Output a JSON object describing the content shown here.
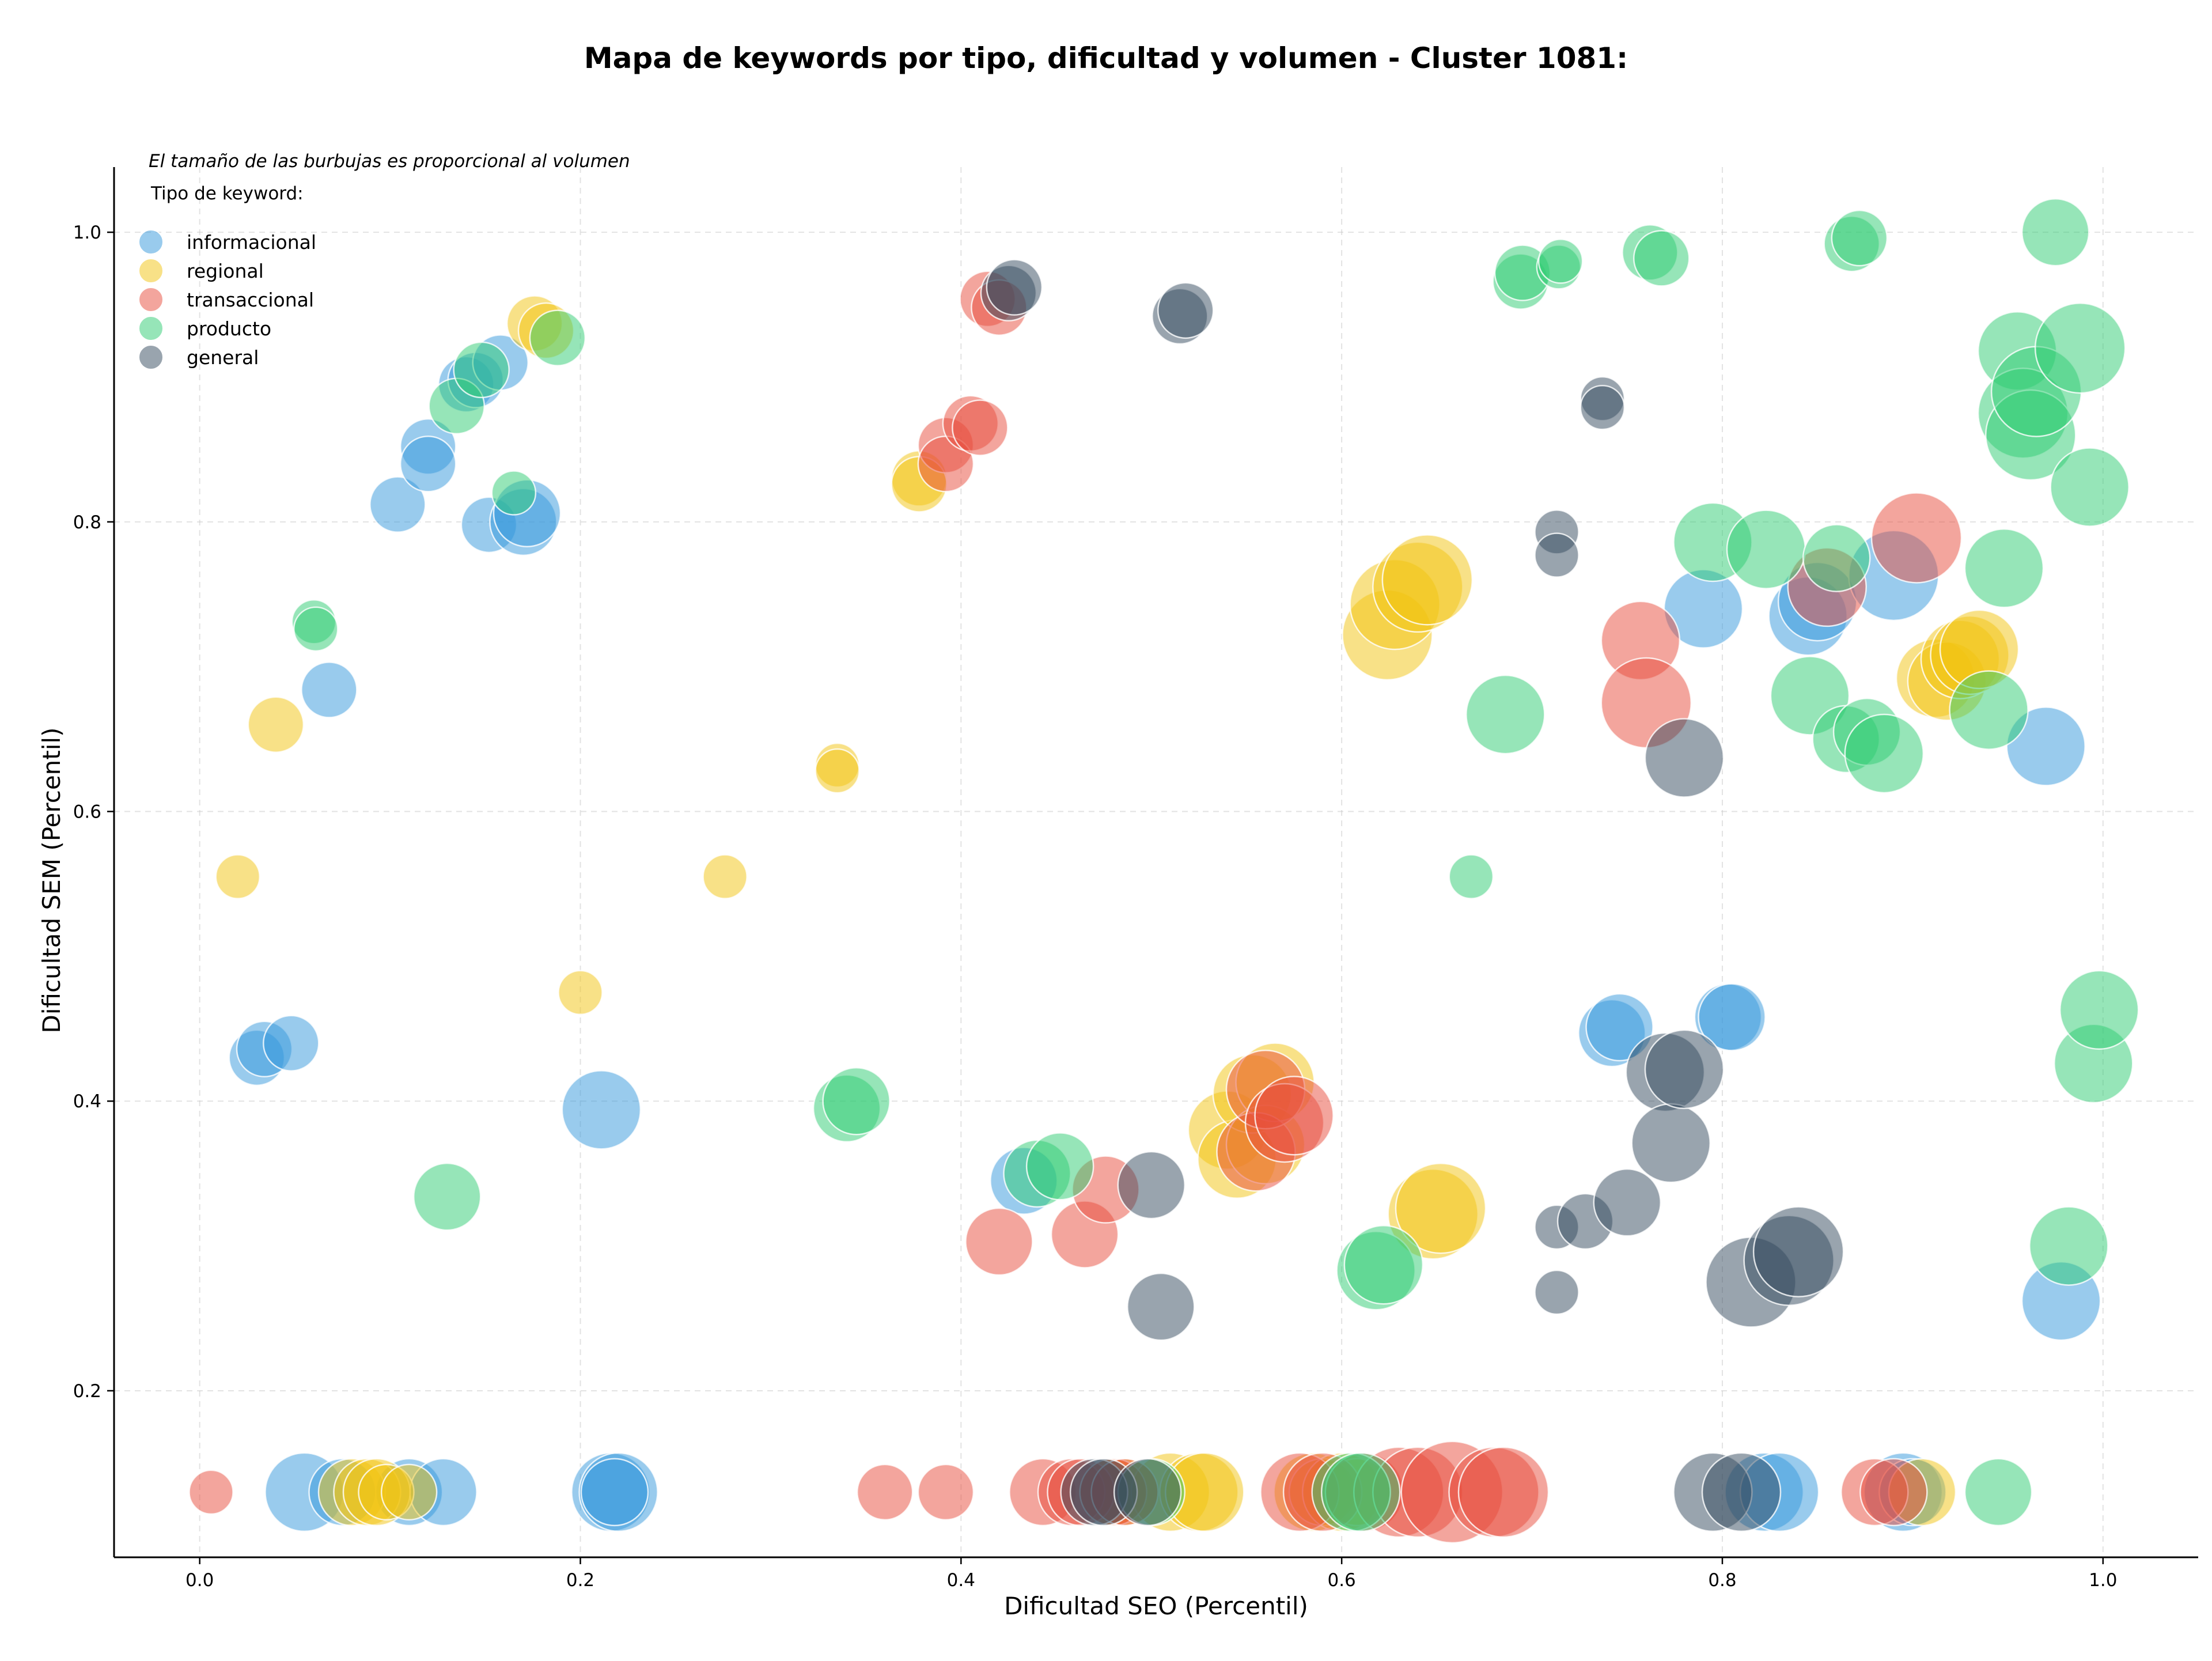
{
  "chart_data": {
    "type": "scatter",
    "title": "Mapa de keywords por tipo, dificultad y volumen - Cluster 1081:",
    "xlabel": "Dificultad SEO (Percentil)",
    "ylabel": "Dificultad SEM (Percentil)",
    "note": "El tamaño de las burbujas es proporcional al volumen",
    "legend_title": "Tipo de keyword:",
    "legend_position": "top-left",
    "grid": true,
    "xlim": [
      -0.045,
      1.05
    ],
    "ylim": [
      0.085,
      1.045
    ],
    "xticks": [
      0.0,
      0.2,
      0.4,
      0.6,
      0.8,
      1.0
    ],
    "xtick_labels": [
      "0.0",
      "0.2",
      "0.4",
      "0.6",
      "0.8",
      "1.0"
    ],
    "yticks": [
      0.2,
      0.4,
      0.6,
      0.8,
      1.0
    ],
    "ytick_labels": [
      "0.2",
      "0.4",
      "0.6",
      "0.8",
      "1.0"
    ],
    "size_encoding": "volumen",
    "series": [
      {
        "name": "informacional",
        "color": "#3498db",
        "points": [
          [
            0.03,
            0.43,
            3
          ],
          [
            0.034,
            0.436,
            3
          ],
          [
            0.048,
            0.44,
            3
          ],
          [
            0.068,
            0.684,
            3
          ],
          [
            0.055,
            0.13,
            5
          ],
          [
            0.075,
            0.13,
            4
          ],
          [
            0.11,
            0.13,
            4
          ],
          [
            0.128,
            0.13,
            4
          ],
          [
            0.104,
            0.812,
            3
          ],
          [
            0.12,
            0.852,
            3
          ],
          [
            0.12,
            0.84,
            3
          ],
          [
            0.14,
            0.895,
            3
          ],
          [
            0.145,
            0.898,
            3
          ],
          [
            0.158,
            0.91,
            3
          ],
          [
            0.152,
            0.798,
            3
          ],
          [
            0.17,
            0.8,
            4
          ],
          [
            0.172,
            0.806,
            4
          ],
          [
            0.211,
            0.394,
            5
          ],
          [
            0.216,
            0.13,
            5
          ],
          [
            0.22,
            0.13,
            5
          ],
          [
            0.218,
            0.13,
            4
          ],
          [
            0.433,
            0.345,
            4
          ],
          [
            0.742,
            0.447,
            4
          ],
          [
            0.746,
            0.451,
            4
          ],
          [
            0.79,
            0.74,
            5
          ],
          [
            0.803,
            0.458,
            4
          ],
          [
            0.805,
            0.458,
            4
          ],
          [
            0.822,
            0.13,
            5
          ],
          [
            0.83,
            0.13,
            5
          ],
          [
            0.845,
            0.735,
            5
          ],
          [
            0.85,
            0.745,
            5
          ],
          [
            0.89,
            0.763,
            6
          ],
          [
            0.895,
            0.13,
            5
          ],
          [
            0.9,
            0.13,
            4
          ],
          [
            0.97,
            0.645,
            5
          ],
          [
            0.978,
            0.262,
            5
          ]
        ]
      },
      {
        "name": "regional",
        "color": "#f1c40f",
        "points": [
          [
            0.02,
            0.555,
            2
          ],
          [
            0.04,
            0.66,
            3
          ],
          [
            0.08,
            0.13,
            4
          ],
          [
            0.088,
            0.13,
            4
          ],
          [
            0.093,
            0.13,
            4
          ],
          [
            0.098,
            0.13,
            3
          ],
          [
            0.11,
            0.13,
            3
          ],
          [
            0.176,
            0.937,
            3
          ],
          [
            0.182,
            0.932,
            3
          ],
          [
            0.2,
            0.475,
            2
          ],
          [
            0.276,
            0.555,
            2
          ],
          [
            0.335,
            0.632,
            2
          ],
          [
            0.335,
            0.628,
            2
          ],
          [
            0.378,
            0.83,
            3
          ],
          [
            0.378,
            0.826,
            3
          ],
          [
            0.48,
            0.13,
            4
          ],
          [
            0.486,
            0.13,
            4
          ],
          [
            0.51,
            0.13,
            5
          ],
          [
            0.525,
            0.13,
            5
          ],
          [
            0.528,
            0.13,
            5
          ],
          [
            0.54,
            0.38,
            5
          ],
          [
            0.545,
            0.36,
            5
          ],
          [
            0.553,
            0.405,
            5
          ],
          [
            0.56,
            0.37,
            5
          ],
          [
            0.565,
            0.413,
            5
          ],
          [
            0.585,
            0.13,
            5
          ],
          [
            0.59,
            0.13,
            4
          ],
          [
            0.6,
            0.13,
            5
          ],
          [
            0.608,
            0.13,
            4
          ],
          [
            0.624,
            0.722,
            6
          ],
          [
            0.628,
            0.743,
            6
          ],
          [
            0.64,
            0.755,
            6
          ],
          [
            0.645,
            0.76,
            6
          ],
          [
            0.648,
            0.322,
            6
          ],
          [
            0.652,
            0.326,
            6
          ],
          [
            0.905,
            0.13,
            4
          ],
          [
            0.912,
            0.692,
            5
          ],
          [
            0.918,
            0.69,
            5
          ],
          [
            0.925,
            0.705,
            5
          ],
          [
            0.93,
            0.708,
            5
          ],
          [
            0.935,
            0.712,
            5
          ]
        ]
      },
      {
        "name": "transaccional",
        "color": "#e74c3c",
        "points": [
          [
            0.006,
            0.13,
            2
          ],
          [
            0.36,
            0.13,
            3
          ],
          [
            0.392,
            0.13,
            3
          ],
          [
            0.392,
            0.853,
            3
          ],
          [
            0.392,
            0.84,
            3
          ],
          [
            0.405,
            0.868,
            3
          ],
          [
            0.41,
            0.865,
            3
          ],
          [
            0.414,
            0.954,
            3
          ],
          [
            0.42,
            0.948,
            3
          ],
          [
            0.42,
            0.303,
            4
          ],
          [
            0.443,
            0.13,
            4
          ],
          [
            0.458,
            0.13,
            4
          ],
          [
            0.463,
            0.13,
            4
          ],
          [
            0.465,
            0.308,
            4
          ],
          [
            0.476,
            0.339,
            4
          ],
          [
            0.48,
            0.13,
            4
          ],
          [
            0.486,
            0.13,
            4
          ],
          [
            0.555,
            0.365,
            5
          ],
          [
            0.56,
            0.408,
            5
          ],
          [
            0.57,
            0.385,
            5
          ],
          [
            0.575,
            0.39,
            5
          ],
          [
            0.578,
            0.13,
            5
          ],
          [
            0.59,
            0.13,
            5
          ],
          [
            0.612,
            0.13,
            5
          ],
          [
            0.63,
            0.13,
            6
          ],
          [
            0.64,
            0.13,
            6
          ],
          [
            0.658,
            0.13,
            7
          ],
          [
            0.68,
            0.13,
            6
          ],
          [
            0.685,
            0.13,
            6
          ],
          [
            0.757,
            0.718,
            5
          ],
          [
            0.76,
            0.675,
            6
          ],
          [
            0.855,
            0.755,
            5
          ],
          [
            0.88,
            0.13,
            4
          ],
          [
            0.89,
            0.13,
            4
          ],
          [
            0.902,
            0.789,
            6
          ]
        ]
      },
      {
        "name": "producto",
        "color": "#2ecc71",
        "points": [
          [
            0.06,
            0.731,
            2
          ],
          [
            0.061,
            0.726,
            2
          ],
          [
            0.13,
            0.334,
            4
          ],
          [
            0.135,
            0.88,
            3
          ],
          [
            0.148,
            0.905,
            3
          ],
          [
            0.165,
            0.82,
            2
          ],
          [
            0.188,
            0.927,
            3
          ],
          [
            0.34,
            0.395,
            4
          ],
          [
            0.345,
            0.4,
            4
          ],
          [
            0.44,
            0.35,
            4
          ],
          [
            0.452,
            0.355,
            4
          ],
          [
            0.5,
            0.13,
            4
          ],
          [
            0.605,
            0.13,
            5
          ],
          [
            0.61,
            0.13,
            5
          ],
          [
            0.618,
            0.283,
            5
          ],
          [
            0.622,
            0.287,
            5
          ],
          [
            0.668,
            0.555,
            2
          ],
          [
            0.686,
            0.667,
            5
          ],
          [
            0.694,
            0.966,
            3
          ],
          [
            0.695,
            0.972,
            3
          ],
          [
            0.714,
            0.976,
            2
          ],
          [
            0.715,
            0.98,
            2
          ],
          [
            0.762,
            0.986,
            3
          ],
          [
            0.768,
            0.982,
            3
          ],
          [
            0.795,
            0.786,
            5
          ],
          [
            0.823,
            0.781,
            5
          ],
          [
            0.846,
            0.68,
            5
          ],
          [
            0.86,
            0.775,
            4
          ],
          [
            0.865,
            0.65,
            4
          ],
          [
            0.868,
            0.992,
            3
          ],
          [
            0.872,
            0.996,
            3
          ],
          [
            0.876,
            0.655,
            4
          ],
          [
            0.885,
            0.64,
            5
          ],
          [
            0.94,
            0.67,
            5
          ],
          [
            0.945,
            0.13,
            4
          ],
          [
            0.948,
            0.768,
            5
          ],
          [
            0.955,
            0.918,
            5
          ],
          [
            0.958,
            0.875,
            6
          ],
          [
            0.962,
            0.86,
            6
          ],
          [
            0.965,
            0.89,
            6
          ],
          [
            0.975,
            1.0,
            4
          ],
          [
            0.982,
            0.3,
            5
          ],
          [
            0.988,
            0.92,
            6
          ],
          [
            0.993,
            0.824,
            5
          ],
          [
            0.995,
            0.426,
            5
          ],
          [
            0.998,
            0.463,
            5
          ]
        ]
      },
      {
        "name": "general",
        "color": "#34495e",
        "points": [
          [
            0.425,
            0.958,
            3
          ],
          [
            0.428,
            0.962,
            3
          ],
          [
            0.47,
            0.13,
            4
          ],
          [
            0.475,
            0.13,
            4
          ],
          [
            0.5,
            0.342,
            4
          ],
          [
            0.498,
            0.13,
            4
          ],
          [
            0.505,
            0.258,
            4
          ],
          [
            0.515,
            0.942,
            3
          ],
          [
            0.518,
            0.946,
            3
          ],
          [
            0.713,
            0.793,
            2
          ],
          [
            0.713,
            0.777,
            2
          ],
          [
            0.713,
            0.313,
            2
          ],
          [
            0.713,
            0.268,
            2
          ],
          [
            0.728,
            0.317,
            3
          ],
          [
            0.737,
            0.885,
            2
          ],
          [
            0.737,
            0.879,
            2
          ],
          [
            0.75,
            0.33,
            4
          ],
          [
            0.77,
            0.42,
            5
          ],
          [
            0.773,
            0.371,
            5
          ],
          [
            0.78,
            0.637,
            5
          ],
          [
            0.78,
            0.422,
            5
          ],
          [
            0.795,
            0.13,
            5
          ],
          [
            0.81,
            0.13,
            5
          ],
          [
            0.815,
            0.275,
            6
          ],
          [
            0.835,
            0.29,
            6
          ],
          [
            0.84,
            0.296,
            6
          ]
        ]
      }
    ]
  }
}
